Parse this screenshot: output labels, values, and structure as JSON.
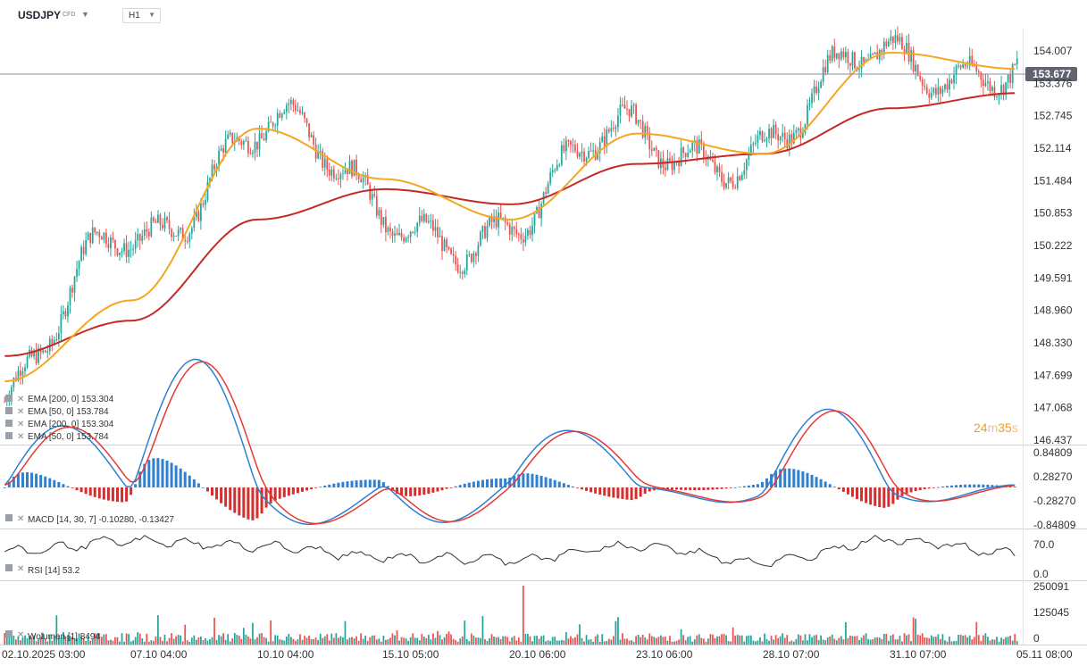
{
  "toolbar": {
    "symbol": "USDJPY",
    "symbol_tag": "CFD",
    "timeframe": "H1"
  },
  "colors": {
    "up": "#26a69a",
    "down": "#ef5350",
    "ema50": "#f5a623",
    "ema200": "#c62828",
    "macd_line": "#2f80d1",
    "signal_line": "#e53935",
    "hist_pos": "#2f80d1",
    "hist_neg": "#d32f2f",
    "rsi": "#333333",
    "price_badge": "#5f646e"
  },
  "price_panel": {
    "y_ticks": [
      "154.007",
      "153.376",
      "152.745",
      "152.114",
      "151.484",
      "150.853",
      "150.222",
      "149.591",
      "148.960",
      "148.330",
      "147.699",
      "147.068",
      "146.437"
    ],
    "current_price": "153.677",
    "countdown_minutes": "24",
    "countdown_m_unit": "m",
    "countdown_seconds": "35",
    "countdown_s_unit": "s",
    "legend": [
      {
        "label": "EMA",
        "params": "[200, 0]",
        "value": "153.304"
      },
      {
        "label": "EMA",
        "params": "[50, 0]",
        "value": "153.784"
      },
      {
        "label": "EMA",
        "params": "[200, 0]",
        "value": "153.304"
      },
      {
        "label": "EMA",
        "params": "[50, 0]",
        "value": "153.784"
      }
    ]
  },
  "macd_panel": {
    "y_ticks": [
      "0.84809",
      "0.28270",
      "-0.28270",
      "-0.84809"
    ],
    "legend": {
      "label": "MACD",
      "params": "[14, 30, 7]",
      "value1": "-0.10280,",
      "value2": "-0.13427"
    }
  },
  "rsi_panel": {
    "y_ticks": [
      "70.0",
      "0.0"
    ],
    "legend": {
      "label": "RSI",
      "params": "[14]",
      "value": "53.2"
    }
  },
  "volume_panel": {
    "y_ticks": [
      "250091",
      "125045",
      "0"
    ],
    "legend": {
      "label": "Wolumen",
      "params": "[1]",
      "value": "8494"
    }
  },
  "time_axis": [
    "02.10.2025 03:00",
    "07.10 04:00",
    "10.10 04:00",
    "15.10 05:00",
    "20.10 06:00",
    "23.10 06:00",
    "28.10 07:00",
    "31.10 07:00",
    "05.11 08:00"
  ],
  "chart_data": {
    "type": "line",
    "x": [
      "02.10.2025 03:00",
      "07.10 04:00",
      "10.10 04:00",
      "15.10 05:00",
      "20.10 06:00",
      "23.10 06:00",
      "28.10 07:00",
      "31.10 07:00",
      "05.11 08:00"
    ],
    "series": [
      {
        "name": "USDJPY",
        "values": [
          147.2,
          150.5,
          152.6,
          151.0,
          150.5,
          152.7,
          152.0,
          154.3,
          153.68
        ]
      },
      {
        "name": "EMA [50, 0]",
        "values": [
          147.6,
          149.2,
          152.6,
          151.6,
          150.8,
          152.5,
          152.1,
          154.1,
          153.78
        ]
      },
      {
        "name": "EMA [200, 0]",
        "values": [
          148.1,
          148.8,
          150.8,
          151.4,
          151.1,
          151.9,
          152.1,
          153.0,
          153.3
        ]
      }
    ],
    "ylim": [
      146.437,
      154.4
    ],
    "rsi": {
      "name": "RSI [14]",
      "values": [
        55,
        68,
        62,
        48,
        45,
        62,
        42,
        70,
        53.2
      ],
      "ylim": [
        0,
        100
      ]
    },
    "macd": {
      "name": "MACD [14, 30, 7]",
      "macd": -0.1028,
      "signal": -0.13427
    }
  }
}
